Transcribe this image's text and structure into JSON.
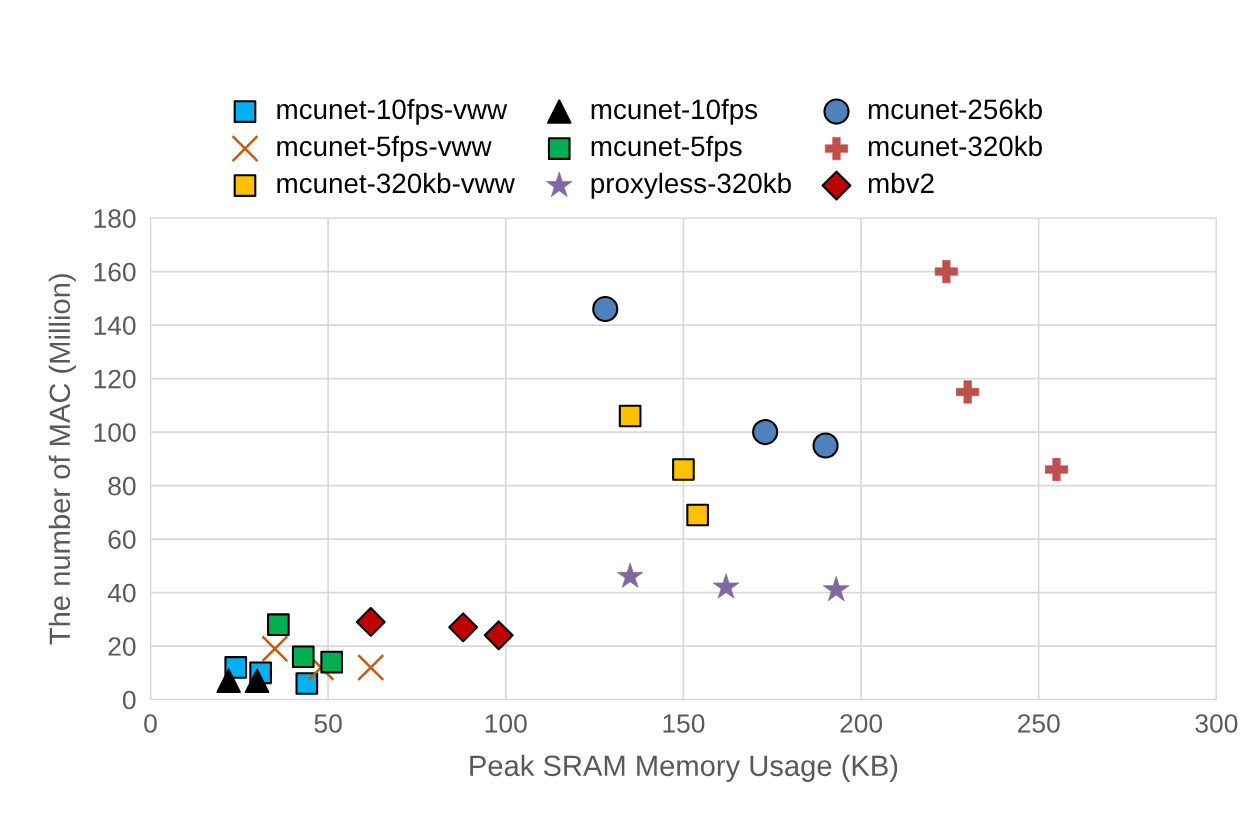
{
  "chart_data": {
    "type": "scatter",
    "xlabel": "Peak SRAM Memory Usage (KB)",
    "ylabel": "The number of MAC (Million)",
    "xlim": [
      0,
      300
    ],
    "xticks": [
      0,
      50,
      100,
      150,
      200,
      250,
      300
    ],
    "ylim": [
      0,
      180
    ],
    "yticks": [
      0,
      20,
      40,
      60,
      80,
      100,
      120,
      140,
      160,
      180
    ],
    "grid": true,
    "legend": "top",
    "series": [
      {
        "name": "mcunet-10fps-vww",
        "color": "#00b0f0",
        "marker": "square",
        "x": [
          24,
          31,
          44
        ],
        "values": [
          12,
          10,
          6
        ]
      },
      {
        "name": "mcunet-5fps-vww",
        "color": "#c55a11",
        "marker": "cross",
        "x": [
          35,
          48,
          62
        ],
        "values": [
          19,
          12,
          12
        ]
      },
      {
        "name": "mcunet-320kb-vww",
        "color": "#ffc000",
        "marker": "square",
        "x": [
          135,
          150,
          154
        ],
        "values": [
          106,
          86,
          69
        ]
      },
      {
        "name": "mcunet-10fps",
        "color": "#000000",
        "marker": "triangle",
        "x": [
          22,
          30
        ],
        "values": [
          7,
          7
        ]
      },
      {
        "name": "mcunet-5fps",
        "color": "#00b050",
        "marker": "square",
        "x": [
          36,
          43,
          51
        ],
        "values": [
          28,
          16,
          14
        ]
      },
      {
        "name": "proxyless-320kb",
        "color": "#7e6aa0",
        "marker": "star",
        "x": [
          135,
          162,
          193
        ],
        "values": [
          46,
          42,
          41
        ]
      },
      {
        "name": "mcunet-256kb",
        "color": "#4f81bd",
        "marker": "circle",
        "x": [
          128,
          173,
          190
        ],
        "values": [
          146,
          100,
          95
        ]
      },
      {
        "name": "mcunet-320kb",
        "color": "#c0504d",
        "x": [
          224,
          230,
          255
        ],
        "values": [
          160,
          115,
          86
        ]
      },
      {
        "name": "mbv2",
        "color": "#c00000",
        "marker": "diamond",
        "x": [
          62,
          88,
          98
        ],
        "values": [
          29,
          27,
          24
        ]
      }
    ]
  }
}
